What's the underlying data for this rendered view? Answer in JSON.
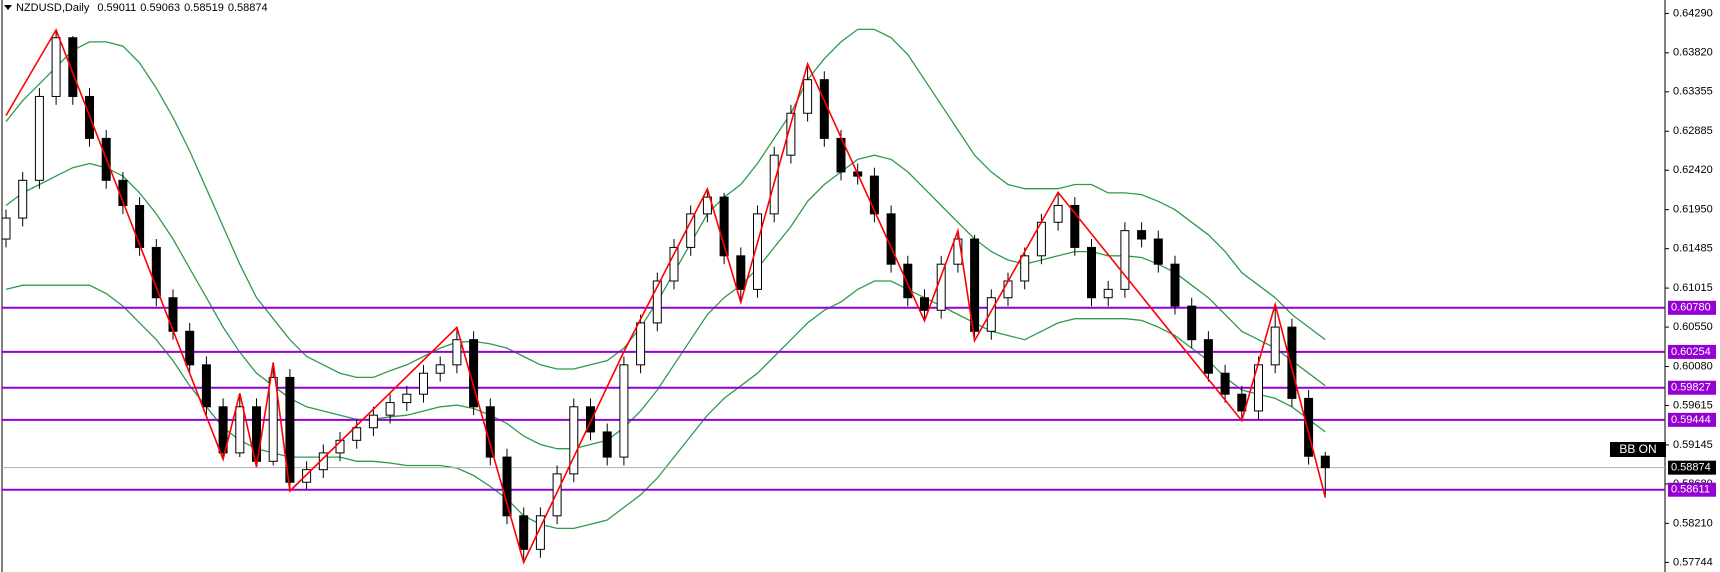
{
  "chart_data": {
    "type": "candlestick",
    "title": "NZDUSD,Daily",
    "candle_color": "#000000",
    "open": [
      0.616,
      0.6185,
      0.623,
      0.633,
      0.64,
      0.633,
      0.628,
      0.623,
      0.62,
      0.615,
      0.609,
      0.605,
      0.601,
      0.596,
      0.5905,
      0.596,
      0.5895,
      0.5995,
      0.587,
      0.5885,
      0.5905,
      0.592,
      0.5935,
      0.595,
      0.5965,
      0.5975,
      0.6,
      0.601,
      0.604,
      0.596,
      0.59,
      0.583,
      0.579,
      0.583,
      0.588,
      0.596,
      0.593,
      0.59,
      0.601,
      0.606,
      0.611,
      0.615,
      0.619,
      0.621,
      0.614,
      0.61,
      0.619,
      0.626,
      0.631,
      0.635,
      0.628,
      0.624,
      0.6235,
      0.619,
      0.613,
      0.609,
      0.6075,
      0.613,
      0.616,
      0.605,
      0.609,
      0.611,
      0.614,
      0.618,
      0.62,
      0.615,
      0.609,
      0.61,
      0.617,
      0.616,
      0.613,
      0.608,
      0.604,
      0.6,
      0.5975,
      0.5955,
      0.601,
      0.6055,
      0.597,
      0.59011
    ],
    "high": [
      0.6195,
      0.624,
      0.634,
      0.6409,
      0.6402,
      0.634,
      0.629,
      0.624,
      0.621,
      0.616,
      0.61,
      0.606,
      0.602,
      0.597,
      0.5976,
      0.597,
      0.6013,
      0.6005,
      0.5895,
      0.5915,
      0.593,
      0.5945,
      0.596,
      0.5975,
      0.5985,
      0.601,
      0.602,
      0.6055,
      0.605,
      0.597,
      0.591,
      0.584,
      0.584,
      0.589,
      0.597,
      0.597,
      0.594,
      0.602,
      0.607,
      0.612,
      0.616,
      0.62,
      0.622,
      0.6215,
      0.615,
      0.62,
      0.627,
      0.632,
      0.6369,
      0.636,
      0.629,
      0.625,
      0.6245,
      0.62,
      0.614,
      0.61,
      0.614,
      0.617,
      0.6165,
      0.61,
      0.612,
      0.615,
      0.619,
      0.6216,
      0.621,
      0.616,
      0.611,
      0.618,
      0.618,
      0.617,
      0.614,
      0.609,
      0.605,
      0.601,
      0.5985,
      0.602,
      0.6082,
      0.6065,
      0.598,
      0.59063
    ],
    "low": [
      0.615,
      0.6175,
      0.622,
      0.632,
      0.632,
      0.627,
      0.622,
      0.619,
      0.614,
      0.608,
      0.604,
      0.6,
      0.595,
      0.5898,
      0.59,
      0.5888,
      0.589,
      0.586,
      0.5862,
      0.5875,
      0.5895,
      0.591,
      0.5925,
      0.594,
      0.5955,
      0.5965,
      0.599,
      0.6,
      0.595,
      0.589,
      0.582,
      0.57745,
      0.578,
      0.582,
      0.587,
      0.592,
      0.589,
      0.589,
      0.6,
      0.605,
      0.61,
      0.614,
      0.618,
      0.613,
      0.6085,
      0.609,
      0.618,
      0.625,
      0.63,
      0.627,
      0.623,
      0.6225,
      0.618,
      0.612,
      0.608,
      0.6063,
      0.6065,
      0.612,
      0.6039,
      0.604,
      0.608,
      0.61,
      0.613,
      0.617,
      0.614,
      0.608,
      0.608,
      0.609,
      0.615,
      0.612,
      0.607,
      0.603,
      0.599,
      0.5965,
      0.5943,
      0.5945,
      0.6,
      0.596,
      0.5891,
      0.58519
    ],
    "close": [
      0.6185,
      0.623,
      0.633,
      0.64,
      0.633,
      0.628,
      0.623,
      0.62,
      0.615,
      0.609,
      0.605,
      0.601,
      0.596,
      0.5905,
      0.596,
      0.5895,
      0.5995,
      0.587,
      0.5885,
      0.5905,
      0.592,
      0.5935,
      0.595,
      0.5965,
      0.5975,
      0.6,
      0.601,
      0.604,
      0.596,
      0.59,
      0.583,
      0.579,
      0.583,
      0.588,
      0.596,
      0.593,
      0.59,
      0.601,
      0.606,
      0.611,
      0.615,
      0.619,
      0.621,
      0.614,
      0.61,
      0.619,
      0.626,
      0.631,
      0.635,
      0.628,
      0.624,
      0.6235,
      0.619,
      0.613,
      0.609,
      0.6075,
      0.613,
      0.616,
      0.605,
      0.609,
      0.611,
      0.614,
      0.618,
      0.62,
      0.615,
      0.609,
      0.61,
      0.617,
      0.616,
      0.613,
      0.608,
      0.604,
      0.6,
      0.5975,
      0.5955,
      0.601,
      0.6055,
      0.597,
      0.5901,
      0.58874
    ],
    "bollinger": {
      "color": "#2f9a4c",
      "upper": [
        0.63,
        0.6325,
        0.6345,
        0.6365,
        0.6385,
        0.6395,
        0.6395,
        0.639,
        0.637,
        0.634,
        0.6305,
        0.6265,
        0.622,
        0.6175,
        0.613,
        0.609,
        0.6065,
        0.604,
        0.602,
        0.601,
        0.6,
        0.5995,
        0.5995,
        0.6003,
        0.601,
        0.602,
        0.603,
        0.6037,
        0.6038,
        0.6035,
        0.603,
        0.602,
        0.601,
        0.6005,
        0.6005,
        0.601,
        0.6015,
        0.603,
        0.6055,
        0.6085,
        0.612,
        0.6155,
        0.619,
        0.621,
        0.6225,
        0.625,
        0.628,
        0.631,
        0.635,
        0.6375,
        0.6395,
        0.641,
        0.641,
        0.64,
        0.638,
        0.635,
        0.632,
        0.629,
        0.626,
        0.624,
        0.6225,
        0.622,
        0.622,
        0.622,
        0.6225,
        0.6225,
        0.6215,
        0.6215,
        0.6213,
        0.6205,
        0.6195,
        0.618,
        0.6165,
        0.6145,
        0.612,
        0.6105,
        0.609,
        0.607,
        0.6055,
        0.604
      ],
      "middle": [
        0.62,
        0.6215,
        0.6225,
        0.6235,
        0.6245,
        0.625,
        0.6245,
        0.6235,
        0.6215,
        0.619,
        0.616,
        0.6125,
        0.609,
        0.6055,
        0.6025,
        0.6,
        0.5985,
        0.597,
        0.596,
        0.5955,
        0.595,
        0.5945,
        0.5945,
        0.5948,
        0.595,
        0.5955,
        0.596,
        0.5962,
        0.5958,
        0.595,
        0.594,
        0.5925,
        0.5915,
        0.591,
        0.591,
        0.5915,
        0.592,
        0.5935,
        0.5955,
        0.598,
        0.601,
        0.604,
        0.607,
        0.609,
        0.6105,
        0.6125,
        0.615,
        0.6175,
        0.6205,
        0.6225,
        0.624,
        0.6255,
        0.626,
        0.6255,
        0.624,
        0.622,
        0.62,
        0.618,
        0.616,
        0.6145,
        0.6135,
        0.613,
        0.6135,
        0.614,
        0.6145,
        0.6145,
        0.614,
        0.614,
        0.6138,
        0.613,
        0.612,
        0.6105,
        0.609,
        0.607,
        0.605,
        0.604,
        0.603,
        0.6015,
        0.6,
        0.5985
      ],
      "lower": [
        0.61,
        0.6105,
        0.6105,
        0.6105,
        0.6105,
        0.6105,
        0.6095,
        0.608,
        0.606,
        0.604,
        0.6015,
        0.5985,
        0.596,
        0.5935,
        0.592,
        0.591,
        0.5905,
        0.59,
        0.59,
        0.59,
        0.59,
        0.5895,
        0.5895,
        0.5893,
        0.589,
        0.589,
        0.589,
        0.5887,
        0.5878,
        0.5865,
        0.585,
        0.583,
        0.582,
        0.5815,
        0.5815,
        0.582,
        0.5825,
        0.584,
        0.5855,
        0.5875,
        0.59,
        0.5925,
        0.595,
        0.597,
        0.5985,
        0.6,
        0.602,
        0.604,
        0.606,
        0.6075,
        0.6085,
        0.61,
        0.611,
        0.611,
        0.61,
        0.609,
        0.608,
        0.607,
        0.606,
        0.605,
        0.6045,
        0.604,
        0.605,
        0.606,
        0.6065,
        0.6065,
        0.6065,
        0.6065,
        0.6063,
        0.6055,
        0.6045,
        0.603,
        0.6015,
        0.5995,
        0.598,
        0.5975,
        0.597,
        0.596,
        0.5945,
        0.593
      ]
    },
    "zigzag": {
      "color": "#ff0000",
      "x": [
        0,
        3,
        13,
        14,
        15,
        16,
        17,
        27,
        31,
        37,
        42,
        44,
        48,
        55,
        57,
        58,
        63,
        74,
        76,
        79
      ],
      "values": [
        0.63073,
        0.64094,
        0.58975,
        0.59761,
        0.58884,
        0.60127,
        0.58596,
        0.60546,
        0.57745,
        0.60258,
        0.62196,
        0.60847,
        0.63688,
        0.60625,
        0.61698,
        0.60389,
        0.62156,
        0.59434,
        0.60821,
        0.58519
      ]
    },
    "levels": {
      "color": "#9400d3",
      "values": [
        {
          "value": 0.6078,
          "label": "0.60780"
        },
        0.60254,
        0.59827,
        0.59444,
        0.58611
      ]
    },
    "indicator_label": "BB ON",
    "ylim": [
      0.5763,
      0.6445
    ],
    "yticks": [
      {
        "value": 0.6429,
        "label": "0.64290"
      },
      {
        "value": 0.6382,
        "label": "0.63820"
      },
      0.63355,
      0.62885,
      {
        "value": 0.6242,
        "label": "0.62420"
      },
      {
        "value": 0.6195,
        "label": "0.61950"
      },
      0.61485,
      0.61015,
      {
        "value": 0.6055,
        "label": "0.60550"
      },
      {
        "value": 0.6008,
        "label": "0.60080"
      },
      0.59615,
      0.59145,
      {
        "value": 0.5868,
        "label": "0.58680"
      },
      {
        "value": 0.5821,
        "label": "0.58210"
      },
      0.57744
    ]
  }
}
